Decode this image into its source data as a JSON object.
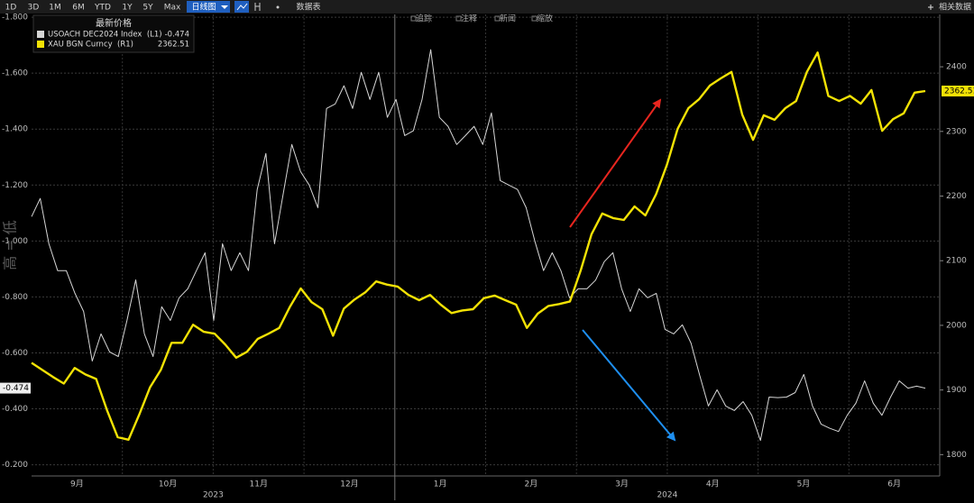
{
  "chart_data": {
    "type": "line",
    "toolbar": {
      "ranges": [
        "1D",
        "3D",
        "1M",
        "6M",
        "YTD",
        "1Y",
        "5Y",
        "Max"
      ],
      "chart_button": "日线图",
      "table_button": "数据表",
      "related": "相关数据"
    },
    "plot_tools": [
      "追踪",
      "注释",
      "新闻",
      "缩放"
    ],
    "legend_title": "最新价格",
    "y_note": "高 = 低",
    "months": [
      "9月",
      "10月",
      "11月",
      "12月",
      "1月",
      "2月",
      "3月",
      "4月",
      "5月",
      "6月"
    ],
    "years": [
      "2023",
      "2024"
    ],
    "ylim": [
      -1.81,
      -0.16
    ],
    "y_inverted": true,
    "yticks": [
      {
        "value": -1.8,
        "label": "-1.800"
      },
      {
        "value": -1.6,
        "label": "-1.600"
      },
      {
        "value": -1.4,
        "label": "-1.400"
      },
      {
        "value": -1.2,
        "label": "-1.200"
      },
      {
        "value": -1.0,
        "label": "-1.000"
      },
      {
        "value": -0.8,
        "label": "-0.800"
      },
      {
        "value": -0.6,
        "label": "-0.600"
      },
      {
        "value": -0.4,
        "label": "-0.400"
      },
      {
        "value": -0.2,
        "label": "-0.200"
      }
    ],
    "y2lim": [
      1767,
      2481
    ],
    "y2ticks": [
      1800,
      1900,
      2000,
      2100,
      2200,
      2300,
      2400
    ],
    "grid": true,
    "series": [
      {
        "name": "USOACH DEC2024 Index  (L1)",
        "legend_value": "-0.474",
        "color": "#d6d6d6",
        "axis": "y",
        "values": [
          -1.087,
          -1.152,
          -0.99,
          -0.894,
          -0.894,
          -0.813,
          -0.748,
          -0.571,
          -0.668,
          -0.603,
          -0.587,
          -0.716,
          -0.861,
          -0.668,
          -0.587,
          -0.765,
          -0.716,
          -0.797,
          -0.829,
          -0.894,
          -0.958,
          -0.716,
          -0.99,
          -0.894,
          -0.958,
          -0.894,
          -1.184,
          -1.313,
          -0.99,
          -1.168,
          -1.345,
          -1.248,
          -1.2,
          -1.119,
          -1.474,
          -1.49,
          -1.555,
          -1.474,
          -1.603,
          -1.506,
          -1.603,
          -1.442,
          -1.506,
          -1.377,
          -1.394,
          -1.506,
          -1.684,
          -1.442,
          -1.41,
          -1.345,
          -1.377,
          -1.41,
          -1.345,
          -1.458,
          -1.216,
          -1.2,
          -1.184,
          -1.119,
          -1.0,
          -0.894,
          -0.958,
          -0.894,
          -0.797,
          -0.829,
          -0.829,
          -0.86,
          -0.926,
          -0.958,
          -0.829,
          -0.748,
          -0.829,
          -0.797,
          -0.813,
          -0.684,
          -0.668,
          -0.7,
          -0.635,
          -0.52,
          -0.41,
          -0.468,
          -0.41,
          -0.394,
          -0.426,
          -0.377,
          -0.287,
          -0.442,
          -0.44,
          -0.442,
          -0.458,
          -0.523,
          -0.41,
          -0.345,
          -0.33,
          -0.319,
          -0.377,
          -0.42,
          -0.5,
          -0.42,
          -0.377,
          -0.442,
          -0.5,
          -0.474,
          -0.481,
          -0.474
        ]
      },
      {
        "name": "XAU BGN Curncy  (R1)",
        "legend_value": "2362.51",
        "color": "#f2e205",
        "axis": "y2",
        "values": [
          1942,
          1931,
          1920,
          1910,
          1934,
          1924,
          1917,
          1869,
          1827,
          1823,
          1862,
          1904,
          1931,
          1973,
          1973,
          2001,
          1990,
          1987,
          1970,
          1950,
          1959,
          1979,
          1987,
          1996,
          2029,
          2057,
          2036,
          2025,
          1984,
          2026,
          2040,
          2051,
          2068,
          2063,
          2060,
          2047,
          2039,
          2047,
          2032,
          2019,
          2023,
          2025,
          2042,
          2046,
          2039,
          2032,
          1996,
          2018,
          2030,
          2033,
          2037,
          2085,
          2141,
          2173,
          2166,
          2163,
          2184,
          2170,
          2203,
          2248,
          2304,
          2336,
          2350,
          2371,
          2382,
          2392,
          2326,
          2287,
          2325,
          2318,
          2336,
          2347,
          2392,
          2422,
          2355,
          2347,
          2355,
          2343,
          2364,
          2301,
          2319,
          2328,
          2360,
          2362.51
        ]
      }
    ]
  }
}
